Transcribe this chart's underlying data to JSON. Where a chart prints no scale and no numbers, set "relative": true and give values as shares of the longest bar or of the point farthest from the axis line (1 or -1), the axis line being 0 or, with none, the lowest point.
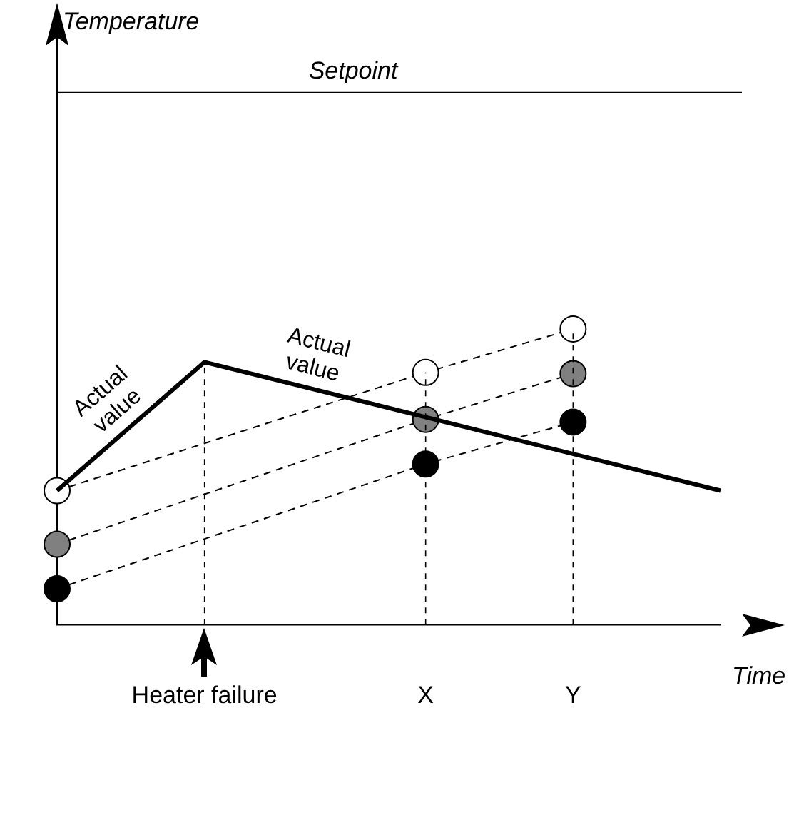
{
  "chart_data": {
    "type": "line",
    "relative": true,
    "xlabel": "Time",
    "categories": [
      null,
      null,
      "Heater failure",
      null,
      null,
      "X",
      null,
      "Y",
      null,
      null
    ],
    "grid": "x",
    "legend": false,
    "series": [
      {
        "color": "#000000",
        "marker": "none",
        "line_style": "solid",
        "values": [
          0.453,
          null,
          0.888,
          null,
          null,
          null,
          null,
          null,
          null,
          0.453
        ]
      },
      {
        "color": "#000000",
        "colors": [
          "#ffffff",
          null,
          null,
          null,
          null,
          "#ffffff",
          null,
          "#ffffff",
          null,
          null
        ],
        "marker": "circle",
        "line_style": "dashed",
        "values": [
          0.453,
          null,
          null,
          null,
          null,
          0.853,
          null,
          1.0,
          null,
          null
        ]
      },
      {
        "color": "#000000",
        "colors": [
          "#808080",
          null,
          null,
          null,
          null,
          "#808080",
          null,
          "#808080",
          null,
          null
        ],
        "marker": "circle",
        "line_style": "dashed",
        "values": [
          0.272,
          null,
          null,
          null,
          null,
          0.694,
          null,
          0.849,
          null,
          null
        ]
      },
      {
        "color": "#000000",
        "colors": [
          "#000000",
          null,
          null,
          null,
          null,
          "#000000",
          null,
          "#000000",
          null,
          null
        ],
        "marker": "circle",
        "line_style": "dashed",
        "values": [
          0.121,
          null,
          null,
          null,
          null,
          0.543,
          null,
          0.685,
          null,
          null
        ]
      }
    ],
    "ref_lines": [
      {
        "axis": "y",
        "value": 1.8,
        "label": "Setpoint"
      }
    ],
    "annotations": [
      "Temperature",
      "Actual value",
      "Actual value"
    ]
  }
}
